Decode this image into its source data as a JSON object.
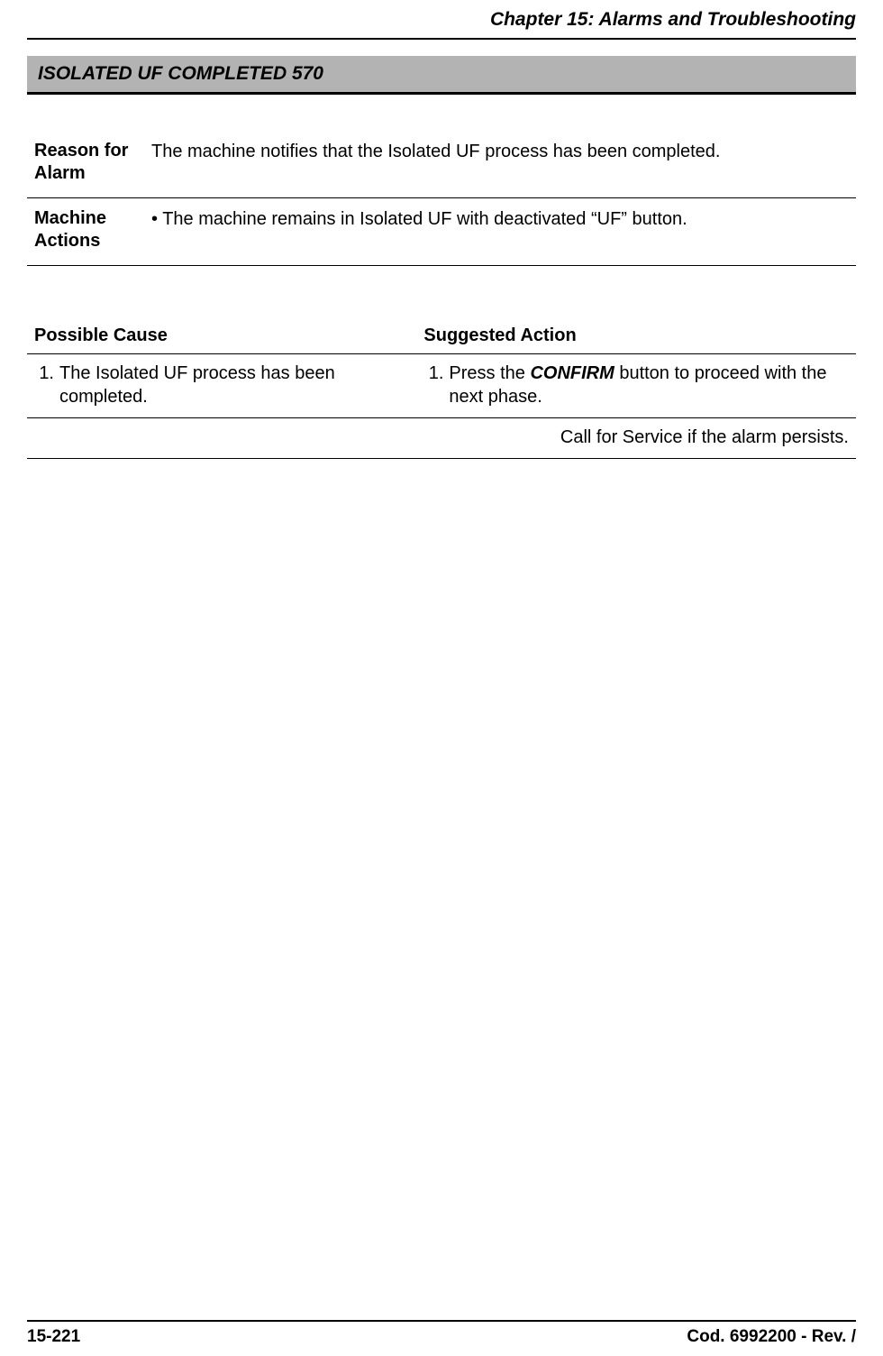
{
  "header": {
    "chapter_title": "Chapter 15: Alarms and Troubleshooting"
  },
  "alarm": {
    "title": "ISOLATED UF COMPLETED 570"
  },
  "info_rows": [
    {
      "label": "Reason for Alarm",
      "value": "The machine notifies that the Isolated UF process has been completed."
    },
    {
      "label": "Machine Actions",
      "value": "• The machine remains in Isolated UF with deactivated “UF” button."
    }
  ],
  "cause_action": {
    "headers": {
      "cause": "Possible Cause",
      "action": "Suggested Action"
    },
    "rows": [
      {
        "cause_num": "1.",
        "cause_text": "The Isolated UF process has been completed.",
        "action_num": "1.",
        "action_prefix": "Press the ",
        "action_bold": "CONFIRM",
        "action_suffix": " button to proceed with the next phase."
      }
    ],
    "service_note": "Call for Service if the alarm persists."
  },
  "footer": {
    "page_number": "15-221",
    "doc_code": "Cod. 6992200 - Rev. /"
  },
  "styles": {
    "background_color": "#ffffff",
    "text_color": "#000000",
    "alarm_box_bg": "#b3b3b3",
    "rule_color": "#000000",
    "body_fontsize": 20,
    "title_fontsize": 21,
    "footer_fontsize": 19
  }
}
